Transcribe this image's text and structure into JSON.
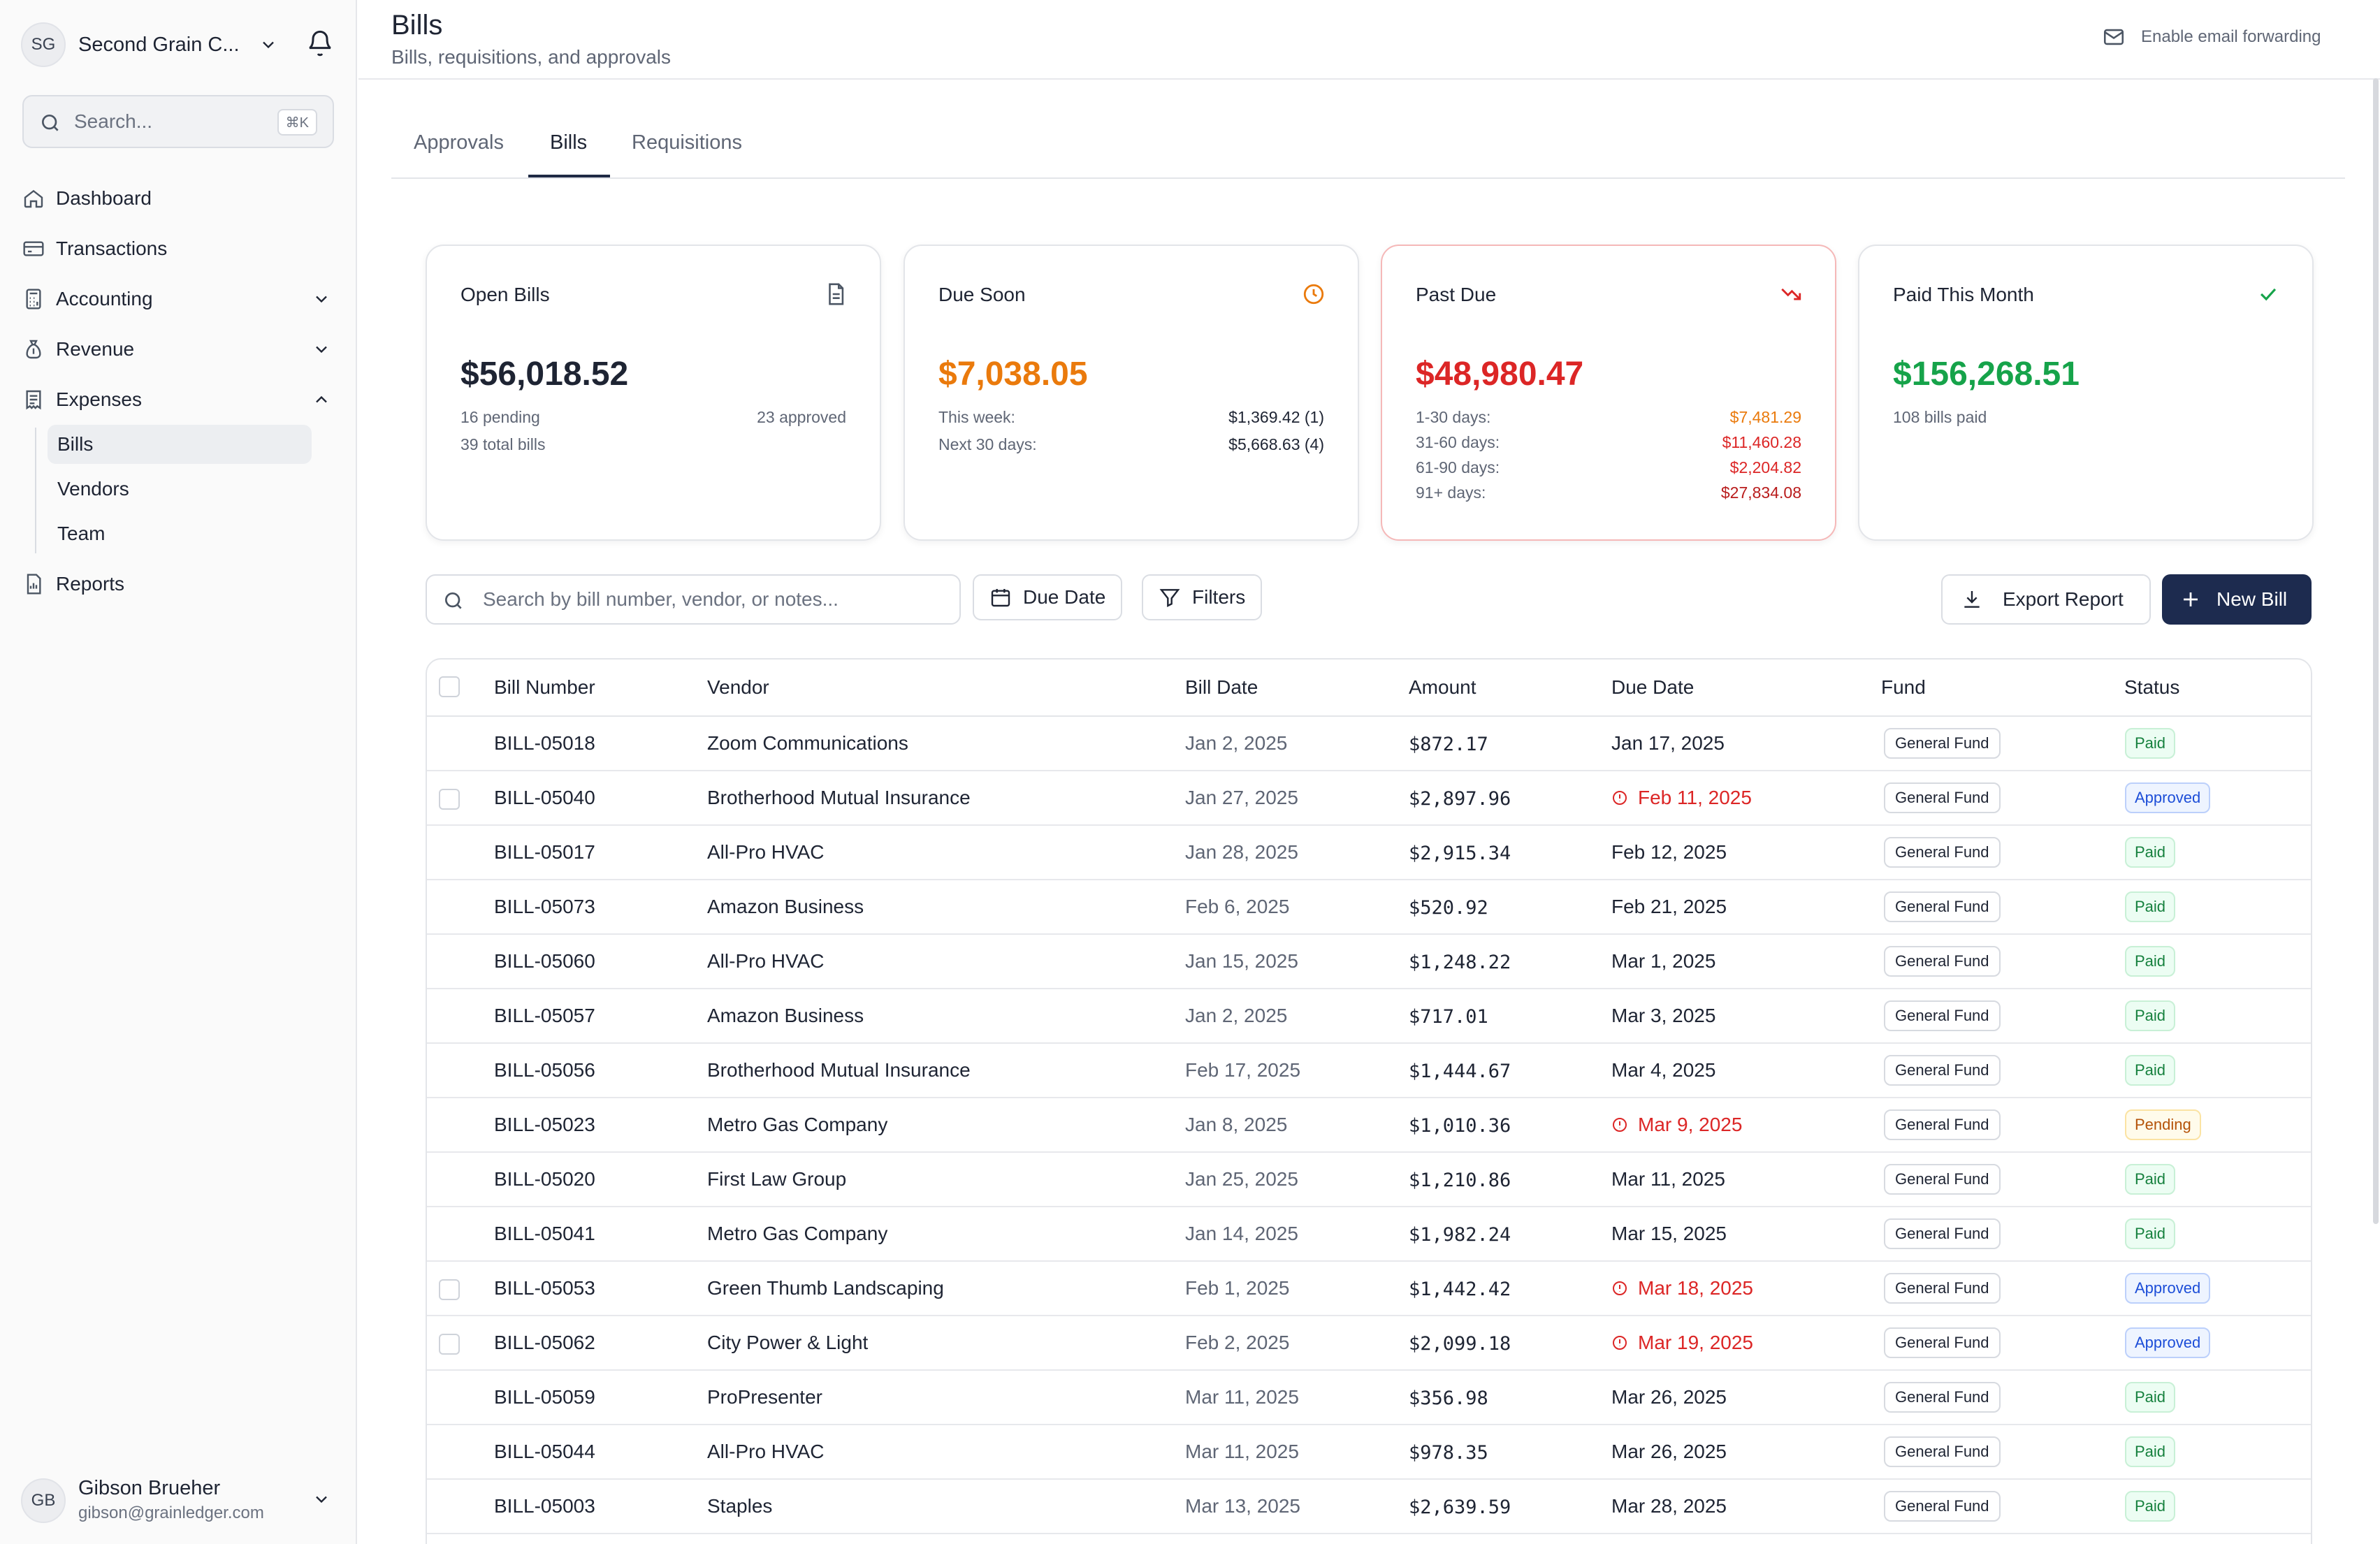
{
  "org": {
    "initials": "SG",
    "name": "Second Grain C..."
  },
  "sidebar": {
    "search_placeholder": "Search...",
    "search_shortcut": "⌘K",
    "items": [
      {
        "label": "Dashboard",
        "icon": "home-icon"
      },
      {
        "label": "Transactions",
        "icon": "credit-card-icon"
      },
      {
        "label": "Accounting",
        "icon": "calculator-icon"
      },
      {
        "label": "Revenue",
        "icon": "money-bag-icon"
      },
      {
        "label": "Expenses",
        "icon": "receipt-icon"
      },
      {
        "label": "Reports",
        "icon": "report-icon"
      }
    ],
    "expenses_sub": [
      {
        "label": "Bills",
        "active": true
      },
      {
        "label": "Vendors"
      },
      {
        "label": "Team"
      }
    ]
  },
  "user": {
    "initials": "GB",
    "name": "Gibson Brueher",
    "email": "gibson@grainledger.com"
  },
  "header": {
    "title": "Bills",
    "subtitle": "Bills, requisitions, and approvals",
    "email_forwarding": "Enable email forwarding"
  },
  "tabs": [
    {
      "label": "Approvals"
    },
    {
      "label": "Bills",
      "active": true
    },
    {
      "label": "Requisitions"
    }
  ],
  "cards": {
    "open": {
      "title": "Open Bills",
      "value": "$56,018.52",
      "pending": "16 pending",
      "approved": "23 approved",
      "total": "39 total bills"
    },
    "due_soon": {
      "title": "Due Soon",
      "value": "$7,038.05",
      "this_week_label": "This week:",
      "this_week_value": "$1,369.42 (1)",
      "next30_label": "Next 30 days:",
      "next30_value": "$5,668.63 (4)"
    },
    "past_due": {
      "title": "Past Due",
      "value": "$48,980.47",
      "buckets": [
        {
          "label": "1-30 days:",
          "value": "$7,481.29"
        },
        {
          "label": "31-60 days:",
          "value": "$11,460.28"
        },
        {
          "label": "61-90 days:",
          "value": "$2,204.82"
        },
        {
          "label": "91+ days:",
          "value": "$27,834.08"
        }
      ]
    },
    "paid": {
      "title": "Paid This Month",
      "value": "$156,268.51",
      "note": "108 bills paid"
    }
  },
  "toolbar": {
    "search_placeholder": "Search by bill number, vendor, or notes...",
    "due_date": "Due Date",
    "filters": "Filters",
    "export": "Export Report",
    "new_bill": "New Bill"
  },
  "colors": {
    "accent": "#1d2b4f",
    "due_soon": "#ea7a0c",
    "past_due": "#dc2626",
    "paid": "#16a34a"
  },
  "table": {
    "columns": [
      "Bill Number",
      "Vendor",
      "Bill Date",
      "Amount",
      "Due Date",
      "Fund",
      "Status"
    ],
    "rows": [
      {
        "bill": "BILL-05018",
        "vendor": "Zoom Communications",
        "bill_date": "Jan 2, 2025",
        "amount": "$872.17",
        "due": "Jan 17, 2025",
        "overdue": false,
        "fund": "General Fund",
        "status": "Paid",
        "checkbox": false
      },
      {
        "bill": "BILL-05040",
        "vendor": "Brotherhood Mutual Insurance",
        "bill_date": "Jan 27, 2025",
        "amount": "$2,897.96",
        "due": "Feb 11, 2025",
        "overdue": true,
        "fund": "General Fund",
        "status": "Approved",
        "checkbox": true
      },
      {
        "bill": "BILL-05017",
        "vendor": "All-Pro HVAC",
        "bill_date": "Jan 28, 2025",
        "amount": "$2,915.34",
        "due": "Feb 12, 2025",
        "overdue": false,
        "fund": "General Fund",
        "status": "Paid",
        "checkbox": false
      },
      {
        "bill": "BILL-05073",
        "vendor": "Amazon Business",
        "bill_date": "Feb 6, 2025",
        "amount": "$520.92",
        "due": "Feb 21, 2025",
        "overdue": false,
        "fund": "General Fund",
        "status": "Paid",
        "checkbox": false
      },
      {
        "bill": "BILL-05060",
        "vendor": "All-Pro HVAC",
        "bill_date": "Jan 15, 2025",
        "amount": "$1,248.22",
        "due": "Mar 1, 2025",
        "overdue": false,
        "fund": "General Fund",
        "status": "Paid",
        "checkbox": false
      },
      {
        "bill": "BILL-05057",
        "vendor": "Amazon Business",
        "bill_date": "Jan 2, 2025",
        "amount": "$717.01",
        "due": "Mar 3, 2025",
        "overdue": false,
        "fund": "General Fund",
        "status": "Paid",
        "checkbox": false
      },
      {
        "bill": "BILL-05056",
        "vendor": "Brotherhood Mutual Insurance",
        "bill_date": "Feb 17, 2025",
        "amount": "$1,444.67",
        "due": "Mar 4, 2025",
        "overdue": false,
        "fund": "General Fund",
        "status": "Paid",
        "checkbox": false
      },
      {
        "bill": "BILL-05023",
        "vendor": "Metro Gas Company",
        "bill_date": "Jan 8, 2025",
        "amount": "$1,010.36",
        "due": "Mar 9, 2025",
        "overdue": true,
        "fund": "General Fund",
        "status": "Pending",
        "checkbox": false
      },
      {
        "bill": "BILL-05020",
        "vendor": "First Law Group",
        "bill_date": "Jan 25, 2025",
        "amount": "$1,210.86",
        "due": "Mar 11, 2025",
        "overdue": false,
        "fund": "General Fund",
        "status": "Paid",
        "checkbox": false
      },
      {
        "bill": "BILL-05041",
        "vendor": "Metro Gas Company",
        "bill_date": "Jan 14, 2025",
        "amount": "$1,982.24",
        "due": "Mar 15, 2025",
        "overdue": false,
        "fund": "General Fund",
        "status": "Paid",
        "checkbox": false
      },
      {
        "bill": "BILL-05053",
        "vendor": "Green Thumb Landscaping",
        "bill_date": "Feb 1, 2025",
        "amount": "$1,442.42",
        "due": "Mar 18, 2025",
        "overdue": true,
        "fund": "General Fund",
        "status": "Approved",
        "checkbox": true
      },
      {
        "bill": "BILL-05062",
        "vendor": "City Power & Light",
        "bill_date": "Feb 2, 2025",
        "amount": "$2,099.18",
        "due": "Mar 19, 2025",
        "overdue": true,
        "fund": "General Fund",
        "status": "Approved",
        "checkbox": true
      },
      {
        "bill": "BILL-05059",
        "vendor": "ProPresenter",
        "bill_date": "Mar 11, 2025",
        "amount": "$356.98",
        "due": "Mar 26, 2025",
        "overdue": false,
        "fund": "General Fund",
        "status": "Paid",
        "checkbox": false
      },
      {
        "bill": "BILL-05044",
        "vendor": "All-Pro HVAC",
        "bill_date": "Mar 11, 2025",
        "amount": "$978.35",
        "due": "Mar 26, 2025",
        "overdue": false,
        "fund": "General Fund",
        "status": "Paid",
        "checkbox": false
      },
      {
        "bill": "BILL-05003",
        "vendor": "Staples",
        "bill_date": "Mar 13, 2025",
        "amount": "$2,639.59",
        "due": "Mar 28, 2025",
        "overdue": false,
        "fund": "General Fund",
        "status": "Paid",
        "checkbox": false
      }
    ]
  }
}
